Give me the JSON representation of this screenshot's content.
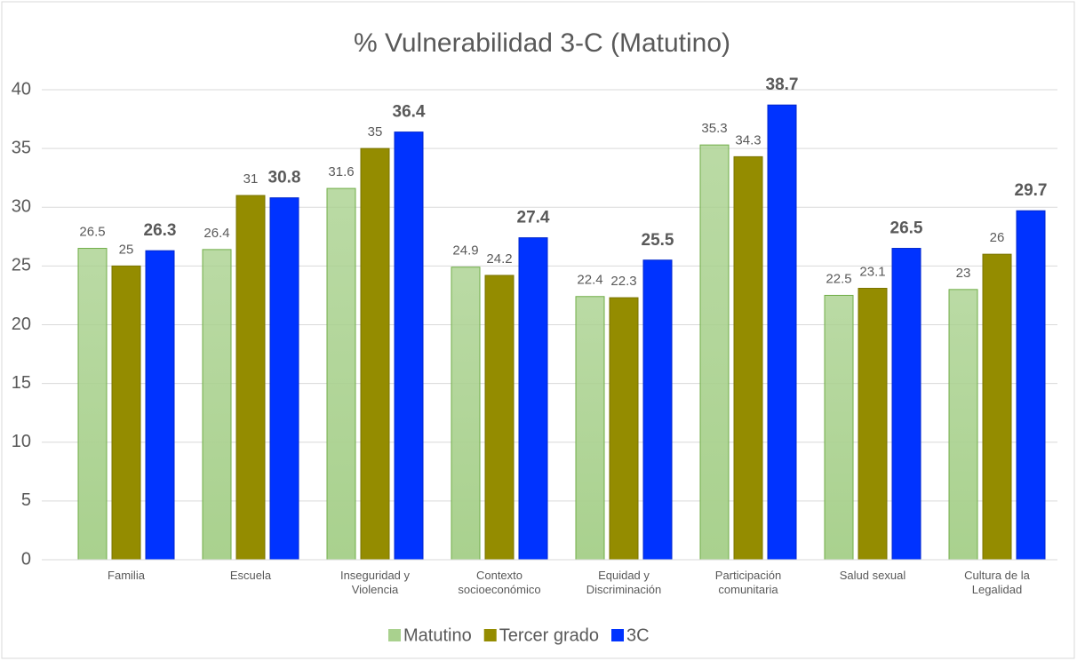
{
  "chart_data": {
    "type": "bar",
    "title": "% Vulnerabilidad 3-C (Matutino)",
    "categories": [
      "Familia",
      "Escuela",
      "Inseguridad y Violencia",
      "Contexto socioeconómico",
      "Equidad y Discriminación",
      "Participación comunitaria",
      "Salud sexual",
      "Cultura de la Legalidad"
    ],
    "series": [
      {
        "name": "Matutino",
        "color": "#a9d18e",
        "values": [
          26.5,
          26.4,
          31.6,
          24.9,
          22.4,
          35.3,
          22.5,
          23
        ]
      },
      {
        "name": "Tercer grado",
        "color": "#948c00",
        "values": [
          25,
          31,
          35,
          24.2,
          22.3,
          34.3,
          23.1,
          26
        ]
      },
      {
        "name": "3C",
        "color": "#0033ff",
        "values": [
          26.3,
          30.8,
          36.4,
          27.4,
          25.5,
          38.7,
          26.5,
          29.7
        ]
      }
    ],
    "ylim": [
      0,
      40
    ],
    "yticks": [
      0,
      5,
      10,
      15,
      20,
      25,
      30,
      35,
      40
    ],
    "grid": true,
    "legend": "bottom"
  }
}
